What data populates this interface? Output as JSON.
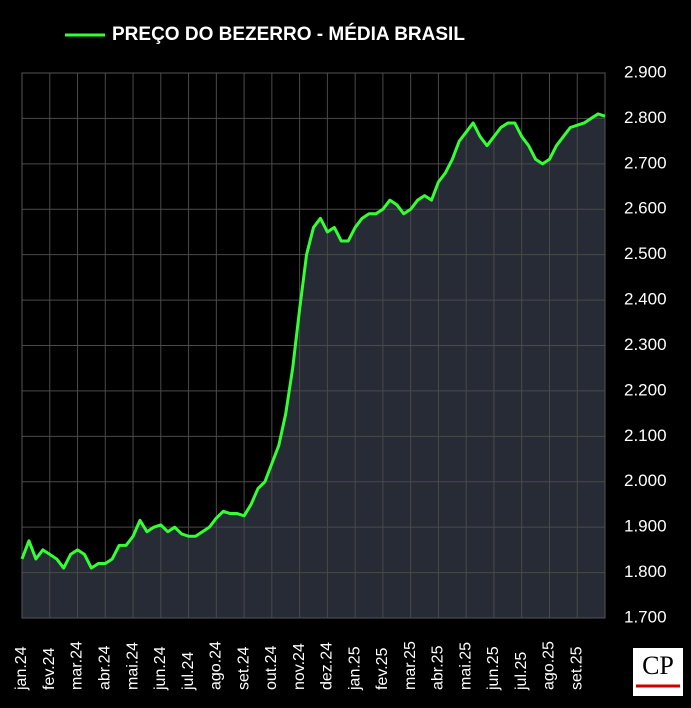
{
  "chart_data": {
    "type": "area-line",
    "title": "PREÇO DO BEZERRO - MÉDIA BRASIL",
    "categories": [
      "jan.24",
      null,
      null,
      null,
      "fev.24",
      null,
      null,
      null,
      "mar.24",
      null,
      null,
      null,
      "abr.24",
      null,
      null,
      null,
      "mai.24",
      null,
      null,
      null,
      "jun.24",
      null,
      null,
      null,
      "jul.24",
      null,
      null,
      null,
      "ago.24",
      null,
      null,
      null,
      "set.24",
      null,
      null,
      null,
      "out.24",
      null,
      null,
      null,
      "nov.24",
      null,
      null,
      null,
      "dez.24",
      null,
      null,
      null,
      "jan.25",
      null,
      null,
      null,
      "fev.25",
      null,
      null,
      null,
      "mar.25",
      null,
      null,
      null,
      "abr.25",
      null,
      null,
      null,
      "mai.25",
      null,
      null,
      null,
      "jun.25",
      null,
      null,
      null,
      "jul.25",
      null,
      null,
      null,
      "ago.25",
      null,
      null,
      null,
      "set.25",
      null,
      null,
      null,
      null
    ],
    "series": [
      {
        "name": "PREÇO DO BEZERRO - MÉDIA BRASIL",
        "color": "#33ff33",
        "values": [
          1830,
          1870,
          1830,
          1850,
          1840,
          1830,
          1810,
          1840,
          1850,
          1840,
          1810,
          1820,
          1820,
          1830,
          1860,
          1860,
          1880,
          1915,
          1890,
          1900,
          1905,
          1890,
          1900,
          1885,
          1880,
          1880,
          1890,
          1900,
          1920,
          1935,
          1930,
          1930,
          1925,
          1950,
          1985,
          2000,
          2040,
          2080,
          2150,
          2250,
          2380,
          2500,
          2560,
          2580,
          2550,
          2560,
          2530,
          2530,
          2560,
          2580,
          2590,
          2590,
          2600,
          2620,
          2610,
          2590,
          2600,
          2620,
          2630,
          2620,
          2660,
          2680,
          2710,
          2750,
          2770,
          2790,
          2760,
          2740,
          2760,
          2780,
          2790,
          2790,
          2760,
          2740,
          2710,
          2700,
          2710,
          2740,
          2760,
          2780,
          2785,
          2790,
          2800,
          2810,
          2805
        ]
      }
    ],
    "ylim": [
      1700,
      2900
    ],
    "yticks": [
      {
        "value": 1700,
        "label": "1.700"
      },
      {
        "value": 1800,
        "label": "1.800"
      },
      {
        "value": 1900,
        "label": "1.900"
      },
      {
        "value": 2000,
        "label": "2.000"
      },
      {
        "value": 2100,
        "label": "2.100"
      },
      {
        "value": 2200,
        "label": "2.200"
      },
      {
        "value": 2300,
        "label": "2.300"
      },
      {
        "value": 2400,
        "label": "2.400"
      },
      {
        "value": 2500,
        "label": "2.500"
      },
      {
        "value": 2600,
        "label": "2.600"
      },
      {
        "value": 2700,
        "label": "2.700"
      },
      {
        "value": 2800,
        "label": "2.800"
      },
      {
        "value": 2900,
        "label": "2.900"
      }
    ],
    "grid": true,
    "area_color": "#262b35",
    "logo": "CP"
  }
}
